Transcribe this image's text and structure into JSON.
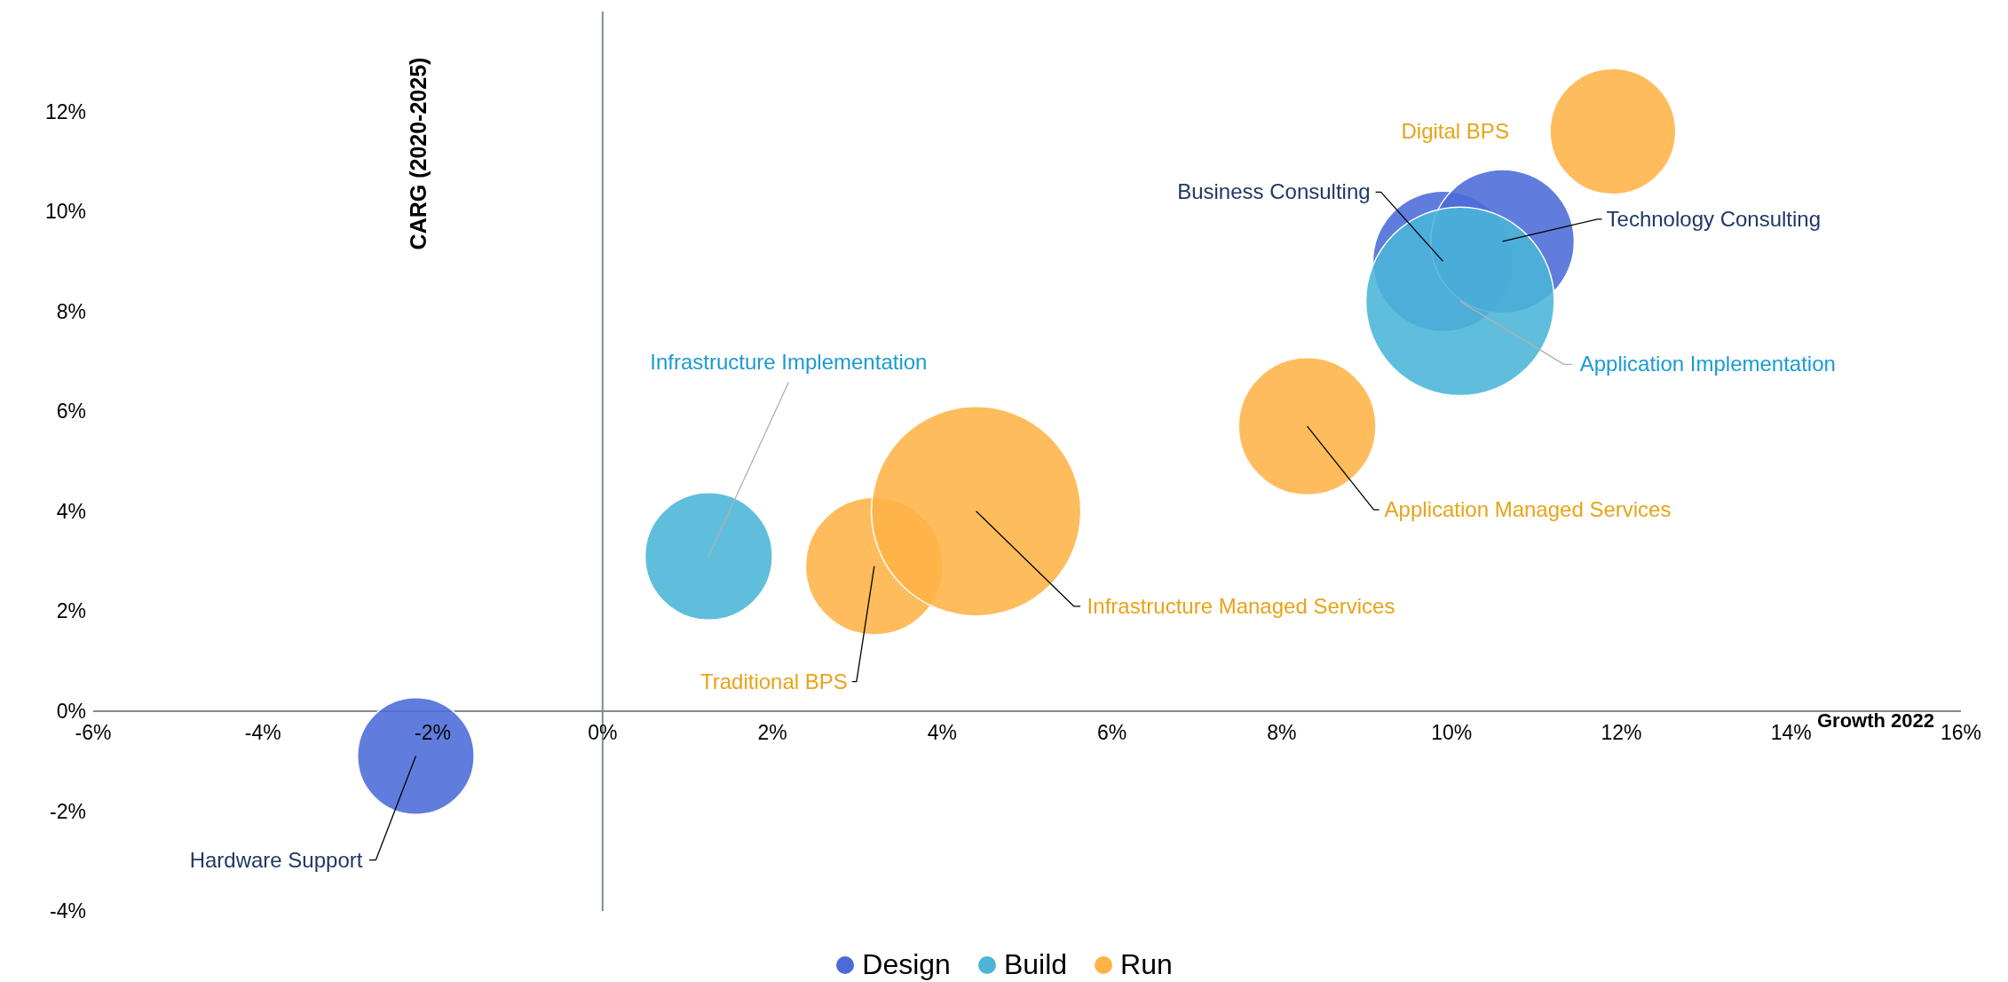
{
  "chart_data": {
    "type": "bubble",
    "xlabel": "Growth 2022",
    "ylabel": "CARG (2020-2025)",
    "xlim": [
      -6,
      16
    ],
    "xticks": [
      {
        "value": -6,
        "label": "-6%"
      },
      {
        "value": -4,
        "label": "-4%"
      },
      {
        "value": -2,
        "label": "-2%"
      },
      {
        "value": 0,
        "label": "0%"
      },
      {
        "value": 2,
        "label": "2%"
      },
      {
        "value": 4,
        "label": "4%"
      },
      {
        "value": 6,
        "label": "6%"
      },
      {
        "value": 8,
        "label": "8%"
      },
      {
        "value": 10,
        "label": "10%"
      },
      {
        "value": 12,
        "label": "12%"
      },
      {
        "value": 14,
        "label": "14%"
      },
      {
        "value": 16,
        "label": "16%"
      }
    ],
    "ylim": [
      -4,
      14
    ],
    "yticks": [
      {
        "value": -4,
        "label": "-4%"
      },
      {
        "value": -2,
        "label": "-2%"
      },
      {
        "value": 0,
        "label": "0%"
      },
      {
        "value": 2,
        "label": "2%"
      },
      {
        "value": 4,
        "label": "4%"
      },
      {
        "value": 6,
        "label": "6%"
      },
      {
        "value": 8,
        "label": "8%"
      },
      {
        "value": 10,
        "label": "10%"
      },
      {
        "value": 12,
        "label": "12%"
      }
    ],
    "legend": "bottom",
    "grid": false,
    "ref_lines": [
      {
        "axis": "x",
        "value": 0,
        "color": "#7f8c8d"
      }
    ],
    "series": [
      {
        "name": "Design",
        "color": "#4a6bd8",
        "x": [
          -2.2,
          9.9,
          10.6
        ],
        "values": [
          -0.9,
          9.0,
          9.4
        ],
        "sizes": [
          0.31,
          0.45,
          0.47
        ]
      },
      {
        "name": "Build",
        "color": "#4ab5d8",
        "x": [
          1.25,
          10.1
        ],
        "values": [
          3.1,
          8.2
        ],
        "sizes": [
          0.37,
          0.81
        ]
      },
      {
        "name": "Run",
        "color": "#ffb347",
        "x": [
          3.2,
          4.4,
          8.3,
          11.9
        ],
        "values": [
          2.9,
          4.0,
          5.7,
          11.6
        ],
        "sizes": [
          0.43,
          1,
          0.43,
          0.36
        ]
      }
    ],
    "annotations": [
      {
        "text": "Hardware Support",
        "x": -2.2,
        "y": -0.9
      },
      {
        "text": "Infrastructure Implementation",
        "x": 1.25,
        "y": 3.1
      },
      {
        "text": "Traditional BPS",
        "x": 3.2,
        "y": 2.9
      },
      {
        "text": "Infrastructure Managed Services",
        "x": 4.4,
        "y": 4.0
      },
      {
        "text": "Application Managed Services",
        "x": 8.3,
        "y": 5.7
      },
      {
        "text": "Application Implementation",
        "x": 10.1,
        "y": 8.2
      },
      {
        "text": "Business Consulting",
        "x": 9.9,
        "y": 9.0
      },
      {
        "text": "Technology Consulting",
        "x": 10.6,
        "y": 9.4
      },
      "Digital BPS"
    ]
  }
}
